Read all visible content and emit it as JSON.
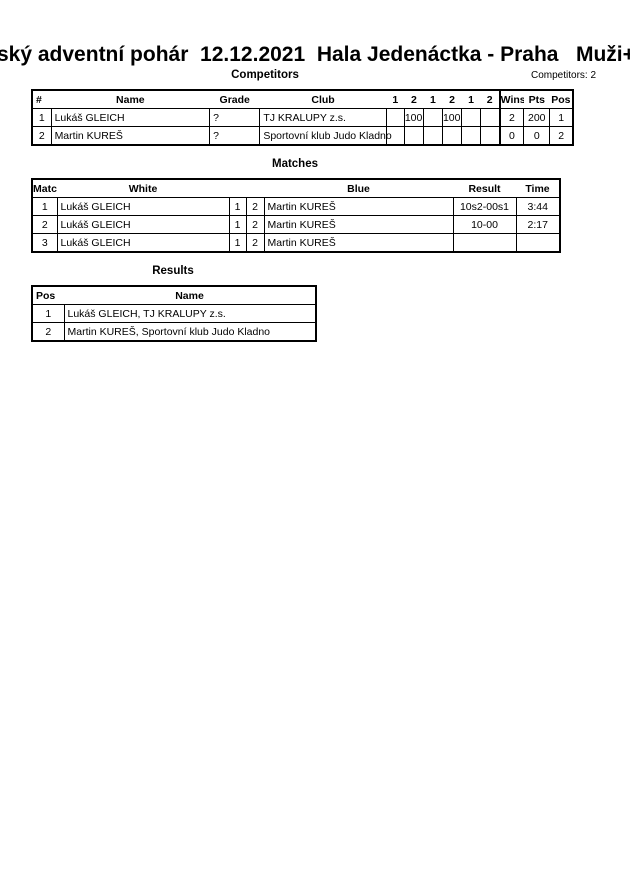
{
  "title": "ský adventní pohár  12.12.2021  Hala Jedenáctka - Praha   Muži+",
  "competitors": {
    "heading": "Competitors",
    "count_label": "Competitors: 2",
    "headers": [
      "#",
      "Name",
      "Grade",
      "Club",
      "1",
      "2",
      "1",
      "2",
      "1",
      "2",
      "Wins",
      "Pts",
      "Pos"
    ],
    "rows": [
      [
        "1",
        "Lukáš GLEICH",
        "?",
        "TJ KRALUPY z.s.",
        "",
        "100",
        "",
        "100",
        "",
        "",
        "2",
        "200",
        "1"
      ],
      [
        "2",
        "Martin KUREŠ",
        "?",
        "Sportovní klub Judo Kladno",
        "",
        "",
        "",
        "",
        "",
        "",
        "0",
        "0",
        "2"
      ]
    ]
  },
  "matches": {
    "heading": "Matches",
    "headers": [
      "Match",
      "White",
      "",
      "",
      "Blue",
      "Result",
      "Time"
    ],
    "rows": [
      [
        "1",
        "Lukáš GLEICH",
        "1",
        "2",
        "Martin KUREŠ",
        "10s2-00s1",
        "3:44"
      ],
      [
        "2",
        "Lukáš GLEICH",
        "1",
        "2",
        "Martin KUREŠ",
        "10-00",
        "2:17"
      ],
      [
        "3",
        "Lukáš GLEICH",
        "1",
        "2",
        "Martin KUREŠ",
        "",
        ""
      ]
    ]
  },
  "results": {
    "heading": "Results",
    "headers": [
      "Pos",
      "Name"
    ],
    "rows": [
      [
        "1",
        "Lukáš GLEICH, TJ KRALUPY z.s."
      ],
      [
        "2",
        "Martin KUREŠ, Sportovní klub Judo Kladno"
      ]
    ]
  }
}
